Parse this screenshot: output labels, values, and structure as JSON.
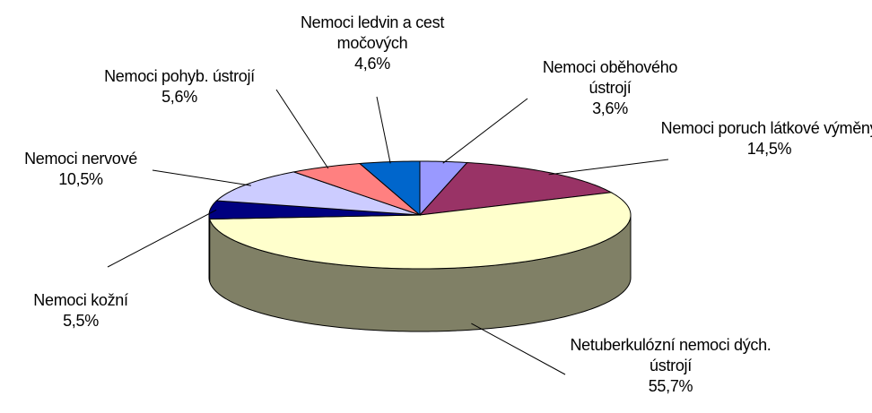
{
  "chart_data": {
    "type": "pie3d",
    "categories": [
      "Nemoci oběhového ústrojí",
      "Nemoci poruch látkové výměny",
      "Netuberkulózní nemoci dých. ústrojí",
      "Nemoci kožní",
      "Nemoci nervové",
      "Nemoci pohyb. ústrojí",
      "Nemoci ledvin a cest močových"
    ],
    "values": [
      3.6,
      14.5,
      55.7,
      5.5,
      10.5,
      5.6,
      4.6
    ],
    "value_labels": [
      "3,6%",
      "14,5%",
      "55,7%",
      "5,5%",
      "10,5%",
      "5,6%",
      "4,6%"
    ],
    "colors": [
      "#9999ff",
      "#993366",
      "#ffffcc",
      "#000080",
      "#ccccff",
      "#ff8080",
      "#0066cc"
    ]
  }
}
